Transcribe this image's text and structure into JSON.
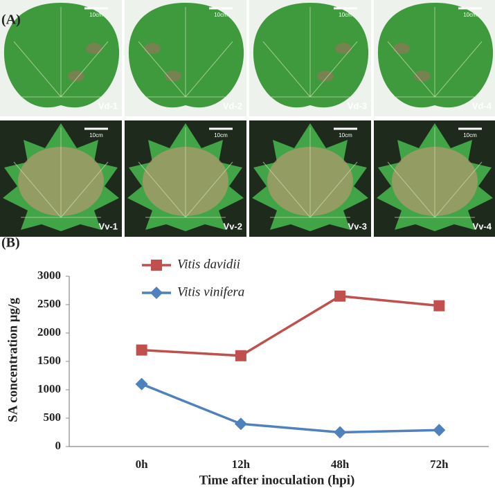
{
  "panel_a": {
    "label": "(A)",
    "photos": [
      {
        "label": "Vd-1",
        "scale": "10cm"
      },
      {
        "label": "Vd-2",
        "scale": "10cm"
      },
      {
        "label": "Vd-3",
        "scale": "10cm"
      },
      {
        "label": "Vd-4",
        "scale": "10cm"
      },
      {
        "label": "Vv-1",
        "scale": "10cm"
      },
      {
        "label": "Vv-2",
        "scale": "10cm"
      },
      {
        "label": "Vv-3",
        "scale": "10cm"
      },
      {
        "label": "Vv-4",
        "scale": "10cm"
      }
    ]
  },
  "chart_data": {
    "type": "line",
    "panel_label": "(B)",
    "y_label": "SA concentration μg/g",
    "x_label": "Time after inoculation (hpi)",
    "categories": [
      "0h",
      "12h",
      "48h",
      "72h"
    ],
    "series": [
      {
        "name": "Vitis davidii",
        "color": "#c0504d",
        "marker": "square",
        "values": [
          1700,
          1600,
          2650,
          2480
        ]
      },
      {
        "name": "Vitis vinifera",
        "color": "#4f81bd",
        "marker": "diamond",
        "values": [
          1100,
          400,
          250,
          290
        ]
      }
    ],
    "ylim": [
      0,
      3000
    ],
    "yticks": [
      0,
      500,
      1000,
      1500,
      2000,
      2500,
      3000
    ],
    "grid": false
  }
}
